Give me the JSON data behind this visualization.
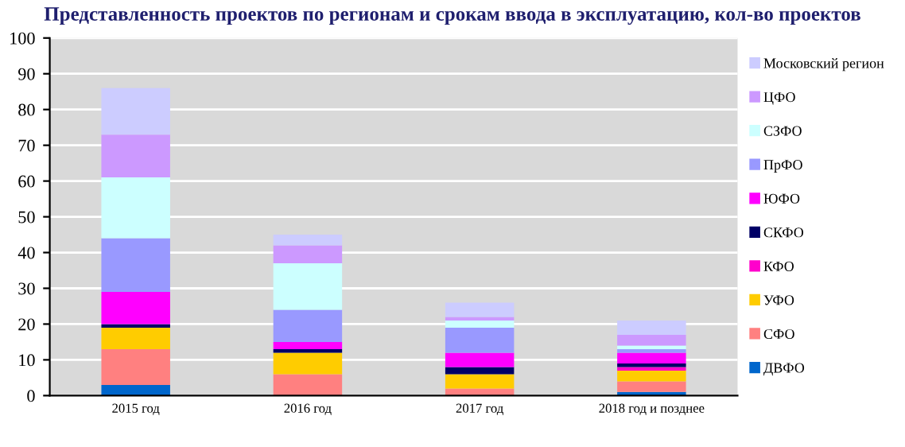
{
  "chart_data": {
    "type": "bar",
    "stacked": true,
    "title": "Представленность проектов по регионам и срокам ввода в эксплуатацию, кол-во проектов",
    "categories": [
      "2015 год",
      "2016 год",
      "2017 год",
      "2018 год и позднее"
    ],
    "series": [
      {
        "name": "ДВФО",
        "color": "#0066cc",
        "values": [
          3,
          0,
          0,
          1
        ]
      },
      {
        "name": "СФО",
        "color": "#ff8080",
        "values": [
          10,
          6,
          2,
          3
        ]
      },
      {
        "name": "УФО",
        "color": "#ffcc00",
        "values": [
          6,
          6,
          4,
          3
        ]
      },
      {
        "name": "КФО",
        "color": "#ff00cc",
        "values": [
          0,
          0,
          0,
          1
        ]
      },
      {
        "name": "СКФО",
        "color": "#000066",
        "values": [
          1,
          1,
          2,
          1
        ]
      },
      {
        "name": "ЮФО",
        "color": "#ff00ff",
        "values": [
          9,
          2,
          4,
          3
        ]
      },
      {
        "name": "ПрФО",
        "color": "#9999ff",
        "values": [
          15,
          9,
          7,
          1
        ]
      },
      {
        "name": "СЗФО",
        "color": "#ccffff",
        "values": [
          17,
          13,
          2,
          1
        ]
      },
      {
        "name": "ЦФО",
        "color": "#cc99ff",
        "values": [
          12,
          5,
          1,
          3
        ]
      },
      {
        "name": "Московский регион",
        "color": "#ccccff",
        "values": [
          13,
          3,
          4,
          4
        ]
      }
    ],
    "ylim": [
      0,
      100
    ],
    "yticks": [
      0,
      10,
      20,
      30,
      40,
      50,
      60,
      70,
      80,
      90,
      100
    ],
    "grid": "y",
    "legend": "right"
  }
}
